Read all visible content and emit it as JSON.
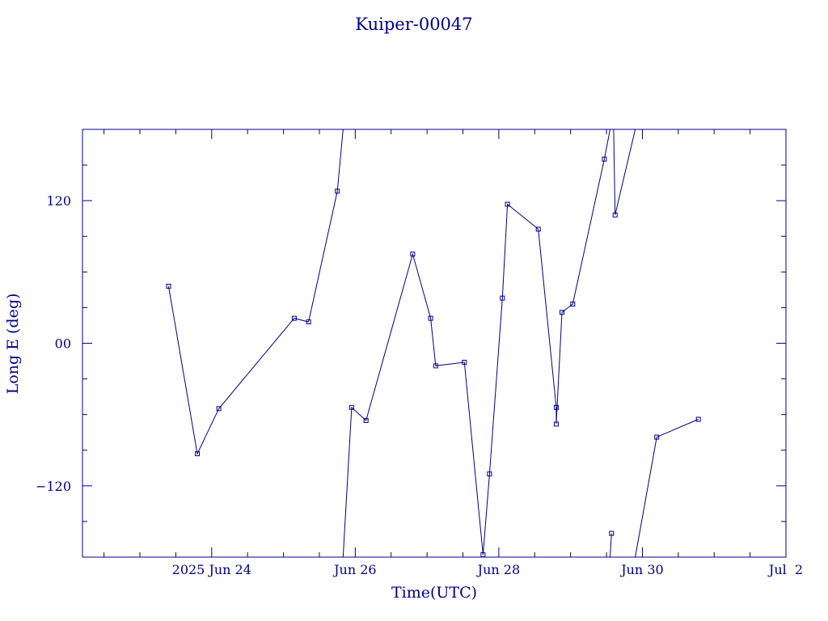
{
  "chart_data": {
    "type": "line",
    "title": "Kuiper-00047",
    "xlabel": "Time(UTC)",
    "ylabel": "Long E (deg)",
    "x_unit": "days (June/July 2025, UTC)",
    "xlim": [
      22.2,
      32.0
    ],
    "ylim": [
      -180,
      180
    ],
    "x_ticks": [
      {
        "value": 24,
        "label": "2025 Jun 24"
      },
      {
        "value": 26,
        "label": "Jun 26"
      },
      {
        "value": 28,
        "label": "Jun 28"
      },
      {
        "value": 30,
        "label": "Jun 30"
      },
      {
        "value": 32,
        "label": "Jul  2"
      }
    ],
    "y_ticks": [
      {
        "value": 120,
        "label": "120"
      },
      {
        "value": 0,
        "label": "00"
      },
      {
        "value": -120,
        "label": "−120"
      }
    ],
    "color": "#00008b",
    "grid": false,
    "legend": "none",
    "series": [
      {
        "points": [
          [
            23.4,
            48
          ],
          [
            23.8,
            -93
          ],
          [
            24.1,
            -55
          ],
          [
            25.15,
            21
          ],
          [
            25.35,
            18
          ],
          [
            25.75,
            128
          ],
          [
            25.83,
            180
          ]
        ]
      },
      {
        "points": [
          [
            25.83,
            -180
          ],
          [
            25.95,
            -54
          ],
          [
            26.15,
            -65
          ],
          [
            26.8,
            75
          ],
          [
            27.05,
            21
          ],
          [
            27.12,
            -19
          ],
          [
            27.52,
            -16
          ],
          [
            27.78,
            -178
          ],
          [
            27.87,
            -110
          ],
          [
            28.05,
            38
          ],
          [
            28.12,
            117
          ],
          [
            28.55,
            96
          ],
          [
            28.8,
            -54
          ],
          [
            28.8,
            -68
          ],
          [
            28.88,
            26
          ],
          [
            29.03,
            33
          ],
          [
            29.47,
            155
          ],
          [
            29.55,
            180
          ]
        ]
      },
      {
        "points": [
          [
            29.55,
            -180
          ],
          [
            29.57,
            -160
          ]
        ]
      },
      {
        "points": [
          [
            29.6,
            180
          ],
          [
            29.62,
            108
          ],
          [
            29.9,
            180
          ]
        ]
      },
      {
        "points": [
          [
            29.9,
            -180
          ],
          [
            30.2,
            -79
          ],
          [
            30.78,
            -64
          ]
        ]
      }
    ],
    "markers": [
      [
        23.4,
        48
      ],
      [
        23.8,
        -93
      ],
      [
        24.1,
        -55
      ],
      [
        25.15,
        21
      ],
      [
        25.35,
        18
      ],
      [
        25.75,
        128
      ],
      [
        25.95,
        -54
      ],
      [
        26.15,
        -65
      ],
      [
        26.8,
        75
      ],
      [
        27.05,
        21
      ],
      [
        27.12,
        -19
      ],
      [
        27.52,
        -16
      ],
      [
        27.78,
        -178
      ],
      [
        27.87,
        -110
      ],
      [
        28.05,
        38
      ],
      [
        28.12,
        117
      ],
      [
        28.55,
        96
      ],
      [
        28.8,
        -54
      ],
      [
        28.8,
        -68
      ],
      [
        28.88,
        26
      ],
      [
        29.03,
        33
      ],
      [
        29.47,
        155
      ],
      [
        29.57,
        -160
      ],
      [
        29.62,
        108
      ],
      [
        30.2,
        -79
      ],
      [
        30.78,
        -64
      ]
    ]
  }
}
